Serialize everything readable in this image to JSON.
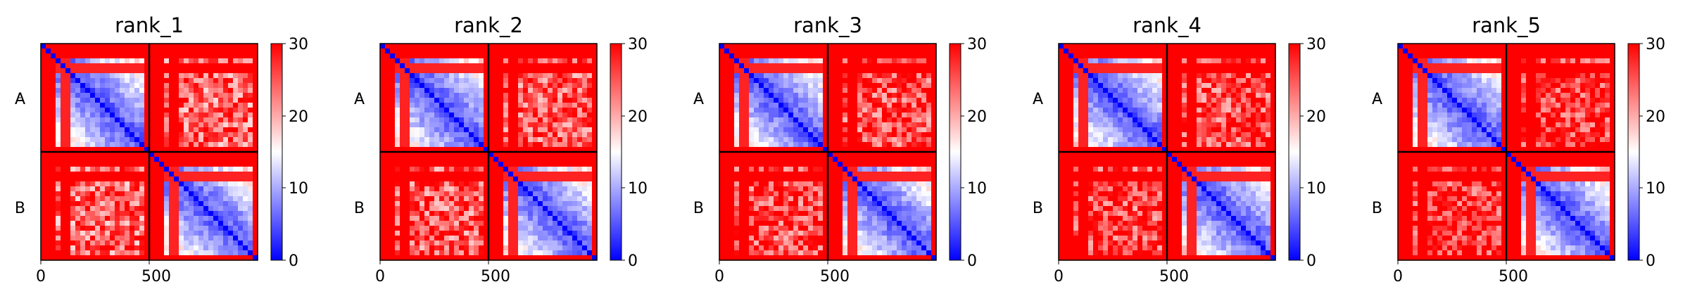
{
  "figure": {
    "panels": [
      {
        "title": "rank_1"
      },
      {
        "title": "rank_2"
      },
      {
        "title": "rank_3"
      },
      {
        "title": "rank_4"
      },
      {
        "title": "rank_5"
      }
    ]
  },
  "chart_data": {
    "type": "heatmap",
    "colormap": [
      "#0000ff",
      "#ffffff",
      "#ff0000"
    ],
    "clim": [
      0,
      30
    ],
    "colorbar_ticks": [
      "0",
      "10",
      "20",
      "30"
    ],
    "x_ticks": [
      "0",
      "500"
    ],
    "y_chain_labels": [
      "A",
      "B"
    ],
    "n_residues": 940,
    "chain_boundary": 470,
    "panels": [
      {
        "title": "rank_1",
        "inter_chain_mean": 24
      },
      {
        "title": "rank_2",
        "inter_chain_mean": 25
      },
      {
        "title": "rank_3",
        "inter_chain_mean": 26
      },
      {
        "title": "rank_4",
        "inter_chain_mean": 26
      },
      {
        "title": "rank_5",
        "inter_chain_mean": 27
      }
    ]
  }
}
